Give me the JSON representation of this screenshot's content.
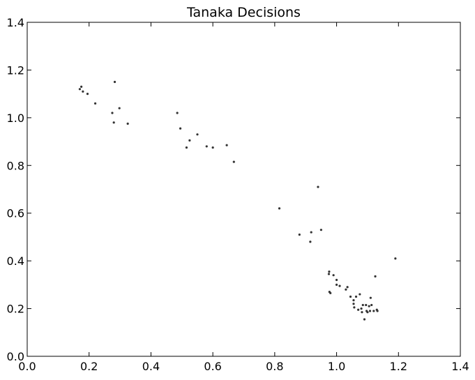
{
  "chart_data": {
    "type": "scatter",
    "title": "Tanaka Decisions",
    "xlabel": "",
    "ylabel": "",
    "xlim": [
      0.0,
      1.4
    ],
    "ylim": [
      0.0,
      1.4
    ],
    "xticks": [
      "0.0",
      "0.2",
      "0.4",
      "0.6",
      "0.8",
      "1.0",
      "1.2",
      "1.4"
    ],
    "yticks": [
      "0.0",
      "0.2",
      "0.4",
      "0.6",
      "0.8",
      "1.0",
      "1.2",
      "1.4"
    ],
    "grid": false,
    "marker_color": "#333333",
    "points": [
      {
        "x": 0.17,
        "y": 1.12
      },
      {
        "x": 0.175,
        "y": 1.13
      },
      {
        "x": 0.18,
        "y": 1.11
      },
      {
        "x": 0.195,
        "y": 1.1
      },
      {
        "x": 0.22,
        "y": 1.06
      },
      {
        "x": 0.275,
        "y": 1.02
      },
      {
        "x": 0.28,
        "y": 0.98
      },
      {
        "x": 0.283,
        "y": 1.15
      },
      {
        "x": 0.298,
        "y": 1.04
      },
      {
        "x": 0.325,
        "y": 0.975
      },
      {
        "x": 0.485,
        "y": 1.02
      },
      {
        "x": 0.495,
        "y": 0.955
      },
      {
        "x": 0.515,
        "y": 0.875
      },
      {
        "x": 0.525,
        "y": 0.905
      },
      {
        "x": 0.55,
        "y": 0.93
      },
      {
        "x": 0.58,
        "y": 0.88
      },
      {
        "x": 0.6,
        "y": 0.875
      },
      {
        "x": 0.645,
        "y": 0.885
      },
      {
        "x": 0.668,
        "y": 0.815
      },
      {
        "x": 0.815,
        "y": 0.62
      },
      {
        "x": 0.88,
        "y": 0.51
      },
      {
        "x": 0.915,
        "y": 0.48
      },
      {
        "x": 0.918,
        "y": 0.52
      },
      {
        "x": 0.94,
        "y": 0.71
      },
      {
        "x": 0.95,
        "y": 0.53
      },
      {
        "x": 0.975,
        "y": 0.345
      },
      {
        "x": 0.976,
        "y": 0.355
      },
      {
        "x": 0.977,
        "y": 0.27
      },
      {
        "x": 0.98,
        "y": 0.265
      },
      {
        "x": 0.99,
        "y": 0.34
      },
      {
        "x": 1.0,
        "y": 0.32
      },
      {
        "x": 1.0,
        "y": 0.3
      },
      {
        "x": 1.01,
        "y": 0.295
      },
      {
        "x": 1.03,
        "y": 0.28
      },
      {
        "x": 1.035,
        "y": 0.29
      },
      {
        "x": 1.045,
        "y": 0.25
      },
      {
        "x": 1.055,
        "y": 0.235
      },
      {
        "x": 1.055,
        "y": 0.22
      },
      {
        "x": 1.057,
        "y": 0.205
      },
      {
        "x": 1.063,
        "y": 0.25
      },
      {
        "x": 1.07,
        "y": 0.195
      },
      {
        "x": 1.075,
        "y": 0.26
      },
      {
        "x": 1.08,
        "y": 0.2
      },
      {
        "x": 1.082,
        "y": 0.185
      },
      {
        "x": 1.085,
        "y": 0.215
      },
      {
        "x": 1.09,
        "y": 0.155
      },
      {
        "x": 1.095,
        "y": 0.215
      },
      {
        "x": 1.097,
        "y": 0.19
      },
      {
        "x": 1.1,
        "y": 0.185
      },
      {
        "x": 1.105,
        "y": 0.21
      },
      {
        "x": 1.108,
        "y": 0.19
      },
      {
        "x": 1.11,
        "y": 0.245
      },
      {
        "x": 1.113,
        "y": 0.215
      },
      {
        "x": 1.12,
        "y": 0.19
      },
      {
        "x": 1.125,
        "y": 0.335
      },
      {
        "x": 1.13,
        "y": 0.195
      },
      {
        "x": 1.132,
        "y": 0.19
      },
      {
        "x": 1.19,
        "y": 0.41
      }
    ]
  }
}
